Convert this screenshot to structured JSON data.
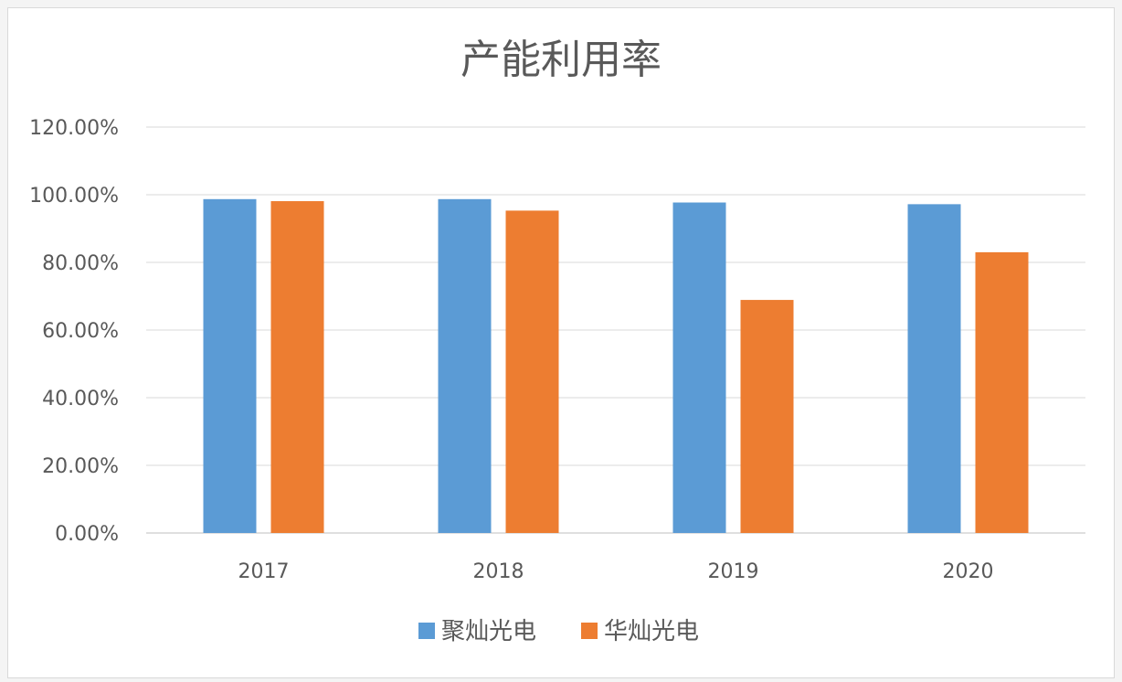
{
  "chart_data": {
    "type": "bar",
    "title": "产能利用率",
    "xlabel": "",
    "ylabel": "",
    "categories": [
      "2017",
      "2018",
      "2019",
      "2020"
    ],
    "series": [
      {
        "name": "聚灿光电",
        "color": "#5b9bd5",
        "values": [
          98.7,
          98.7,
          97.7,
          97.2
        ]
      },
      {
        "name": "华灿光电",
        "color": "#ed7d31",
        "values": [
          98.1,
          95.3,
          68.9,
          83.0
        ]
      }
    ],
    "ylim": [
      0,
      120
    ],
    "yticks": [
      0,
      20,
      40,
      60,
      80,
      100,
      120
    ],
    "ytick_labels": [
      "0.00%",
      "20.00%",
      "40.00%",
      "60.00%",
      "80.00%",
      "100.00%",
      "120.00%"
    ],
    "grid": true,
    "legend_position": "bottom"
  }
}
